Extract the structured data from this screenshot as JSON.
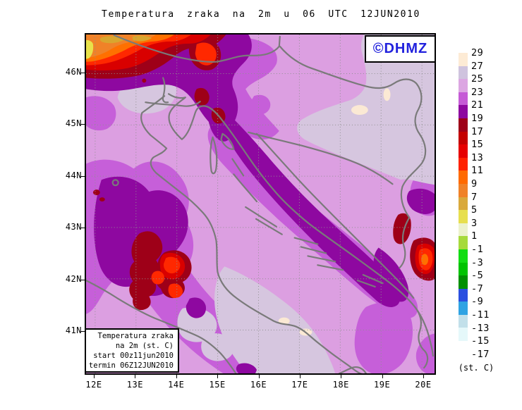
{
  "title": "Temperatura zraka na 2m u 06 UTC 12JUN2010",
  "watermark": {
    "label": "©DHMZ"
  },
  "info_box": {
    "lines": [
      "Temperatura zraka",
      "na 2m (st. C)",
      "start 00z11jun2010",
      "termin 06Z12JUN2010"
    ]
  },
  "legend": {
    "unit_label": "(st. C)",
    "levels": [
      "29",
      "27",
      "25",
      "23",
      "21",
      "19",
      "17",
      "15",
      "13",
      "11",
      "9",
      "7",
      "5",
      "3",
      "1",
      "-1",
      "-3",
      "-5",
      "-7",
      "-9",
      "-11",
      "-13",
      "-15",
      "-17"
    ],
    "colors": [
      "#FDEBD5",
      "#CFC3DE",
      "#DCA6E2",
      "#C55BD6",
      "#8E08A0",
      "#9E0018",
      "#C40000",
      "#E60000",
      "#FF2200",
      "#FF6A00",
      "#F08228",
      "#D9A93C",
      "#E7DF4E",
      "#ECF2CC",
      "#A6DA3C",
      "#12DD12",
      "#00C300",
      "#008F00",
      "#2A4FE0",
      "#2FA3E3",
      "#C2E0EA",
      "#E5F8FA",
      "#FFFFFF"
    ]
  },
  "axes": {
    "lat_labels": [
      "46N",
      "45N",
      "44N",
      "43N",
      "42N",
      "41N"
    ],
    "lon_labels": [
      "12E",
      "13E",
      "14E",
      "15E",
      "16E",
      "17E",
      "18E",
      "19E",
      "20E"
    ]
  },
  "palette": {
    "orchid_light": "#DC9FE1",
    "orchid_medium": "#C65FD9",
    "purple_dark": "#8E08A0",
    "red_dark": "#9E0018",
    "red": "#D90000",
    "red_bright": "#FF2800",
    "orange_red": "#FF7000",
    "orange": "#F08228",
    "gold": "#D9A62E",
    "yellow": "#E8E24A",
    "lavender_pale": "#D6C6DF",
    "cream": "#FBE9D4",
    "coast_grey": "#7A7A7A",
    "grid_grey": "#909090",
    "dhmz_blue": "#2222DD"
  }
}
